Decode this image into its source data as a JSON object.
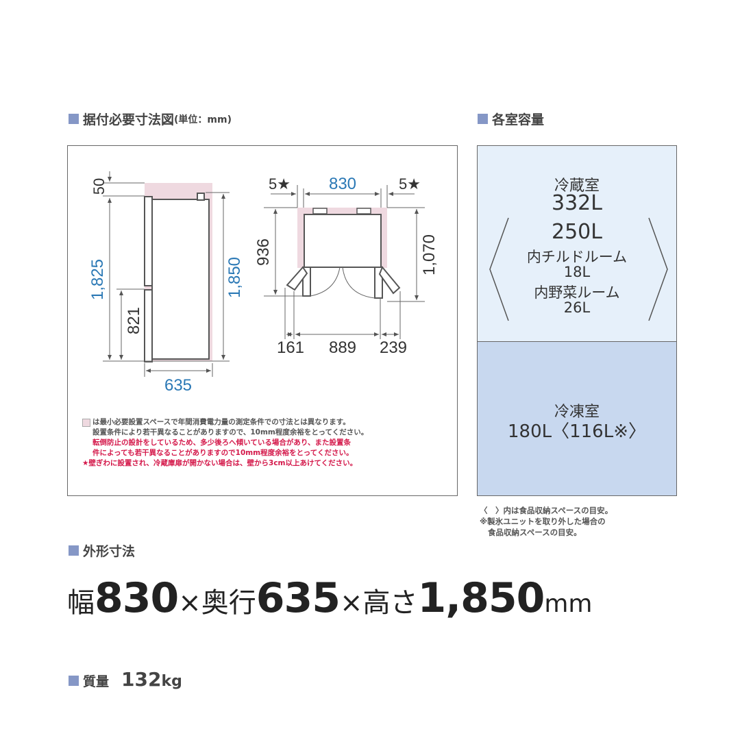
{
  "install": {
    "heading": "据付必要寸法図",
    "unit": "(単位：mm)",
    "side_view": {
      "top_clearance": "50",
      "fridge_height": "1,825",
      "lower_height": "821",
      "total_height": "1,850",
      "depth": "635"
    },
    "top_view": {
      "left_clearance": "5★",
      "width": "830",
      "right_clearance": "5★",
      "depth": "936",
      "depth_door_open": "1,070",
      "left_swing": "161",
      "open_width": "889",
      "right_swing": "239"
    },
    "notes": [
      "は最小必要設置スペースで年間消費電力量の測定条件での寸法とは異なります。",
      "設置条件により若干異なることがありますので、10mm程度余裕をとってください。",
      "転倒防止の設計をしているため、多少後ろへ傾いている場合があり、また設置条",
      "件によっても若干異なることがありますので10mm程度余裕をとってください。",
      "★壁ぎわに設置され、冷蔵庫扉が開かない場合は、壁から3cm以上あけてください。"
    ]
  },
  "capacity": {
    "heading": "各室容量",
    "fridge": {
      "label": "冷蔵室",
      "total": "332L",
      "storage": "250L",
      "chilled_label": "内チルドルーム",
      "chilled": "18L",
      "veg_label": "内野菜ルーム",
      "veg": "26L"
    },
    "freezer": {
      "label": "冷凍室",
      "value": "180L〈116L※〉"
    },
    "notes": [
      "〈　〉内は食品収納スペースの目安。",
      "※製氷ユニットを取り外した場合の",
      "食品収納スペースの目安。"
    ]
  },
  "outer": {
    "heading": "外形寸法",
    "w_label": "幅",
    "w": "830",
    "x1": "×",
    "d_label": "奥行",
    "d": "635",
    "x2": "×",
    "h_label": "高さ",
    "h": "1,850",
    "unit": "mm"
  },
  "mass": {
    "heading": "質量",
    "value": "132",
    "unit": "kg"
  },
  "colors": {
    "accent": "#8597c6",
    "dimension_blue": "#2a78b5",
    "clearance_pink": "#efd9e0",
    "fridge_box": "#e6f0fa",
    "freezer_box": "#c8d8ef",
    "warning_red": "#d4184a"
  }
}
